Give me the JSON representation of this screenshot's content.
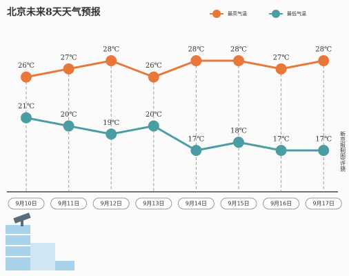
{
  "chart_data": {
    "type": "line",
    "title": "北京未来8天天气预报",
    "categories": [
      "9月10日",
      "9月11日",
      "9月12日",
      "9月13日",
      "9月14日",
      "9月15日",
      "9月16日",
      "9月17日"
    ],
    "series": [
      {
        "name": "最高气温",
        "color": "#e8773a",
        "values": [
          26,
          27,
          28,
          26,
          28,
          28,
          27,
          28
        ],
        "value_labels": [
          "26℃",
          "27℃",
          "28℃",
          "26℃",
          "28℃",
          "28℃",
          "27℃",
          "28℃"
        ]
      },
      {
        "name": "最低气温",
        "color": "#4a9ea3",
        "values": [
          21,
          20,
          19,
          20,
          17,
          18,
          17,
          17
        ],
        "value_labels": [
          "21℃",
          "20℃",
          "19℃",
          "20℃",
          "17℃",
          "18℃",
          "17℃",
          "17℃"
        ]
      }
    ],
    "credit": "新京报制图/许骁"
  }
}
